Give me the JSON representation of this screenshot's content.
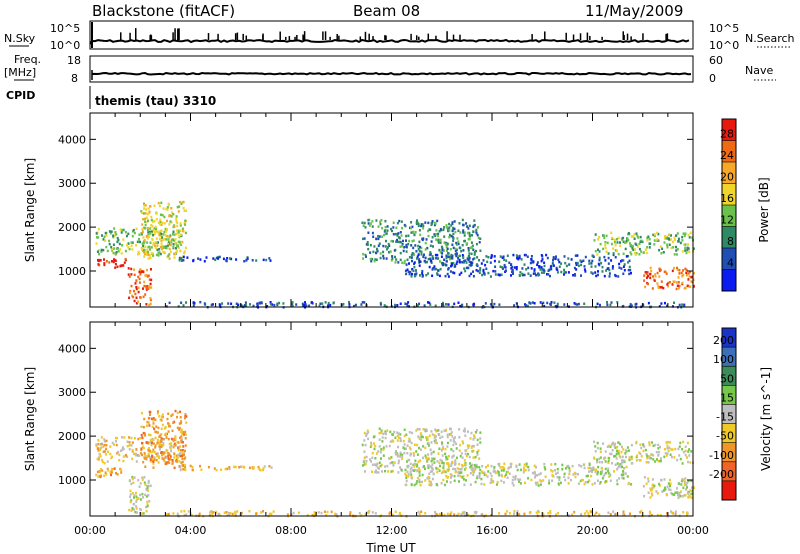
{
  "header": {
    "station": "Blackstone (fitACF)",
    "beam": "Beam 08",
    "date": "11/May/2009"
  },
  "strips": {
    "nsky_label": "N.Sky",
    "nsearch_label": "N.Search",
    "nsky_ticks": [
      "10^5",
      "10^0"
    ],
    "nsearch_ticks": [
      "10^5",
      "10^0"
    ],
    "freq_label_top": "Freq.",
    "freq_label_unit": "[MHz]",
    "freq_ticks": [
      "18",
      "8"
    ],
    "nave_label": "Nave",
    "nave_ticks": [
      "60",
      "0"
    ],
    "cpid_label": "CPID",
    "cpid_text": "themis (tau) 3310"
  },
  "chart_data": [
    {
      "type": "heatmap",
      "title": "",
      "ylabel": "Slant Range [km]",
      "xlabel": "Time UT",
      "x_ticks": [
        "00:00",
        "04:00",
        "08:00",
        "12:00",
        "16:00",
        "20:00",
        "00:00"
      ],
      "y_ticks": [
        "1000",
        "2000",
        "3000",
        "4000"
      ],
      "xlim_hours": [
        0,
        24
      ],
      "ylim_km": [
        180,
        4600
      ],
      "colorbar": {
        "label": "Power [dB]",
        "ticks": [
          "4",
          "8",
          "12",
          "16",
          "20",
          "24",
          "28"
        ],
        "range": [
          0,
          32
        ],
        "colors": [
          "#0a1cf0",
          "#1f4fb4",
          "#2e8a64",
          "#69c24a",
          "#f0d62a",
          "#f7a828",
          "#f06a14",
          "#e81a10"
        ]
      },
      "regions": [
        {
          "t": [
            0.2,
            1.4
          ],
          "r": [
            1100,
            1300
          ],
          "level": 7
        },
        {
          "t": [
            0.2,
            3.7
          ],
          "r": [
            1400,
            2000
          ],
          "level": 3
        },
        {
          "t": [
            2.0,
            3.8
          ],
          "r": [
            1300,
            2600
          ],
          "level": 4
        },
        {
          "t": [
            3.5,
            7.3
          ],
          "r": [
            1250,
            1350
          ],
          "level": 1
        },
        {
          "t": [
            1.5,
            2.4
          ],
          "r": [
            250,
            1100
          ],
          "level": 6
        },
        {
          "t": [
            10.8,
            15.5
          ],
          "r": [
            1200,
            2200
          ],
          "level": 2
        },
        {
          "t": [
            12.5,
            21.5
          ],
          "r": [
            900,
            1400
          ],
          "level": 1
        },
        {
          "t": [
            20.0,
            24.0
          ],
          "r": [
            1400,
            1900
          ],
          "level": 3
        },
        {
          "t": [
            22.0,
            24.0
          ],
          "r": [
            600,
            1100
          ],
          "level": 6
        },
        {
          "t": [
            3.0,
            23.8
          ],
          "r": [
            200,
            320
          ],
          "level": 1
        }
      ]
    },
    {
      "type": "heatmap",
      "title": "",
      "ylabel": "Slant Range [km]",
      "xlabel": "Time UT",
      "x_ticks": [
        "00:00",
        "04:00",
        "08:00",
        "12:00",
        "16:00",
        "20:00",
        "00:00"
      ],
      "y_ticks": [
        "1000",
        "2000",
        "3000",
        "4000"
      ],
      "xlim_hours": [
        0,
        24
      ],
      "ylim_km": [
        180,
        4600
      ],
      "colorbar": {
        "label": "Velocity [m s^-1]",
        "ticks": [
          "200",
          "100",
          "50",
          "15",
          "-15",
          "-50",
          "-100",
          "-200"
        ],
        "range": [
          -250,
          250
        ],
        "colors": [
          "#1a34c8",
          "#3c6fb8",
          "#3c8c5a",
          "#76c84a",
          "#bebebe",
          "#f0c828",
          "#f09628",
          "#f06428",
          "#e81a10"
        ]
      },
      "regions": [
        {
          "t": [
            0.2,
            1.4
          ],
          "r": [
            1100,
            1300
          ],
          "level": 6
        },
        {
          "t": [
            0.2,
            3.7
          ],
          "r": [
            1400,
            2000
          ],
          "level": 5
        },
        {
          "t": [
            2.0,
            3.8
          ],
          "r": [
            1300,
            2600
          ],
          "level": 6
        },
        {
          "t": [
            3.5,
            7.3
          ],
          "r": [
            1250,
            1350
          ],
          "level": 5
        },
        {
          "t": [
            1.5,
            2.4
          ],
          "r": [
            250,
            1100
          ],
          "level": 4
        },
        {
          "t": [
            10.8,
            15.5
          ],
          "r": [
            1200,
            2200
          ],
          "level": 4
        },
        {
          "t": [
            12.5,
            21.5
          ],
          "r": [
            900,
            1400
          ],
          "level": 4
        },
        {
          "t": [
            20.0,
            24.0
          ],
          "r": [
            1400,
            1900
          ],
          "level": 4
        },
        {
          "t": [
            22.0,
            24.0
          ],
          "r": [
            600,
            1100
          ],
          "level": 4
        },
        {
          "t": [
            3.0,
            23.8
          ],
          "r": [
            200,
            320
          ],
          "level": 5
        }
      ]
    }
  ]
}
